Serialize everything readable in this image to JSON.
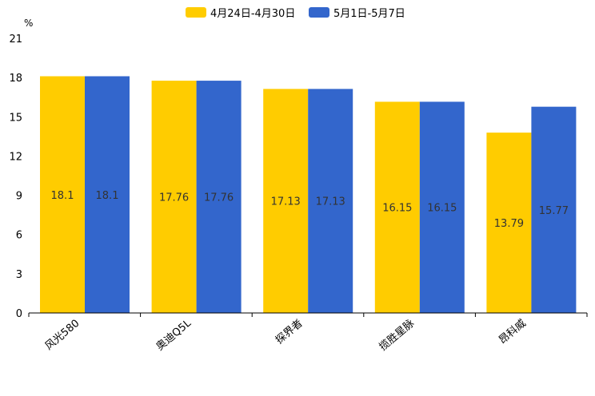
{
  "chart_data": {
    "type": "bar",
    "unit": "%",
    "categories": [
      "风光580",
      "奥迪Q5L",
      "探界者",
      "揽胜星脉",
      "昂科威"
    ],
    "series": [
      {
        "name": "4月24日-4月30日",
        "color": "#FFCC00",
        "values": [
          18.1,
          17.76,
          17.13,
          16.15,
          13.79
        ],
        "labels": [
          "18.1",
          "17.76",
          "17.13",
          "16.15",
          "13.79"
        ]
      },
      {
        "name": "5月1日-5月7日",
        "color": "#3366CC",
        "values": [
          18.1,
          17.76,
          17.13,
          16.15,
          15.77
        ],
        "labels": [
          "18.1",
          "17.76",
          "17.13",
          "16.15",
          "15.77"
        ]
      }
    ],
    "ylim": [
      0,
      21
    ],
    "yticks": [
      "0",
      "3",
      "6",
      "9",
      "12",
      "15",
      "18",
      "21"
    ],
    "legend_position": "top-center",
    "grid": false
  }
}
